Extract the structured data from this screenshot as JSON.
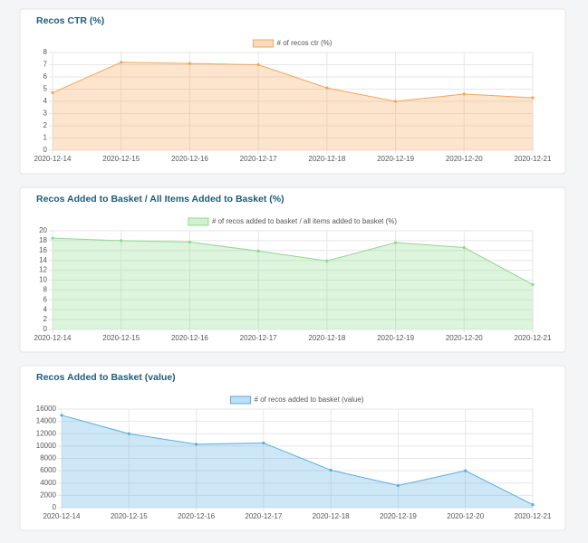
{
  "chart_data": [
    {
      "type": "line",
      "title": "Recos CTR (%)",
      "categories": [
        "2020-12-14",
        "2020-12-15",
        "2020-12-16",
        "2020-12-17",
        "2020-12-18",
        "2020-12-19",
        "2020-12-20",
        "2020-12-21"
      ],
      "series": [
        {
          "name": "# of recos ctr (%)",
          "color": "#f5a55a",
          "values": [
            4.7,
            7.2,
            7.1,
            7.0,
            5.1,
            4.0,
            4.6,
            4.3
          ]
        }
      ],
      "ylim": [
        0,
        8
      ],
      "yticks": [
        0,
        1,
        2,
        3,
        4,
        5,
        6,
        7,
        8
      ],
      "grid": true
    },
    {
      "type": "line",
      "title": "Recos Added to Basket / All Items Added to Basket (%)",
      "categories": [
        "2020-12-14",
        "2020-12-15",
        "2020-12-16",
        "2020-12-17",
        "2020-12-18",
        "2020-12-19",
        "2020-12-20",
        "2020-12-21"
      ],
      "series": [
        {
          "name": "# of recos added to basket / all items added to basket (%)",
          "color": "#8fd98f",
          "values": [
            18.5,
            18.0,
            17.7,
            15.9,
            13.9,
            17.6,
            16.6,
            9.1
          ]
        }
      ],
      "ylim": [
        0,
        20
      ],
      "yticks": [
        0,
        2,
        4,
        6,
        8,
        10,
        12,
        14,
        16,
        18,
        20
      ],
      "grid": true
    },
    {
      "type": "line",
      "title": "Recos Added to Basket (value)",
      "categories": [
        "2020-12-14",
        "2020-12-15",
        "2020-12-16",
        "2020-12-17",
        "2020-12-18",
        "2020-12-19",
        "2020-12-20",
        "2020-12-21"
      ],
      "series": [
        {
          "name": "# of recos added to basket (value)",
          "color": "#5aaee0",
          "values": [
            15000,
            12000,
            10300,
            10500,
            6100,
            3600,
            6000,
            500
          ]
        }
      ],
      "ylim": [
        0,
        16000
      ],
      "yticks": [
        0,
        2000,
        4000,
        6000,
        8000,
        10000,
        12000,
        14000,
        16000
      ],
      "grid": true
    }
  ]
}
